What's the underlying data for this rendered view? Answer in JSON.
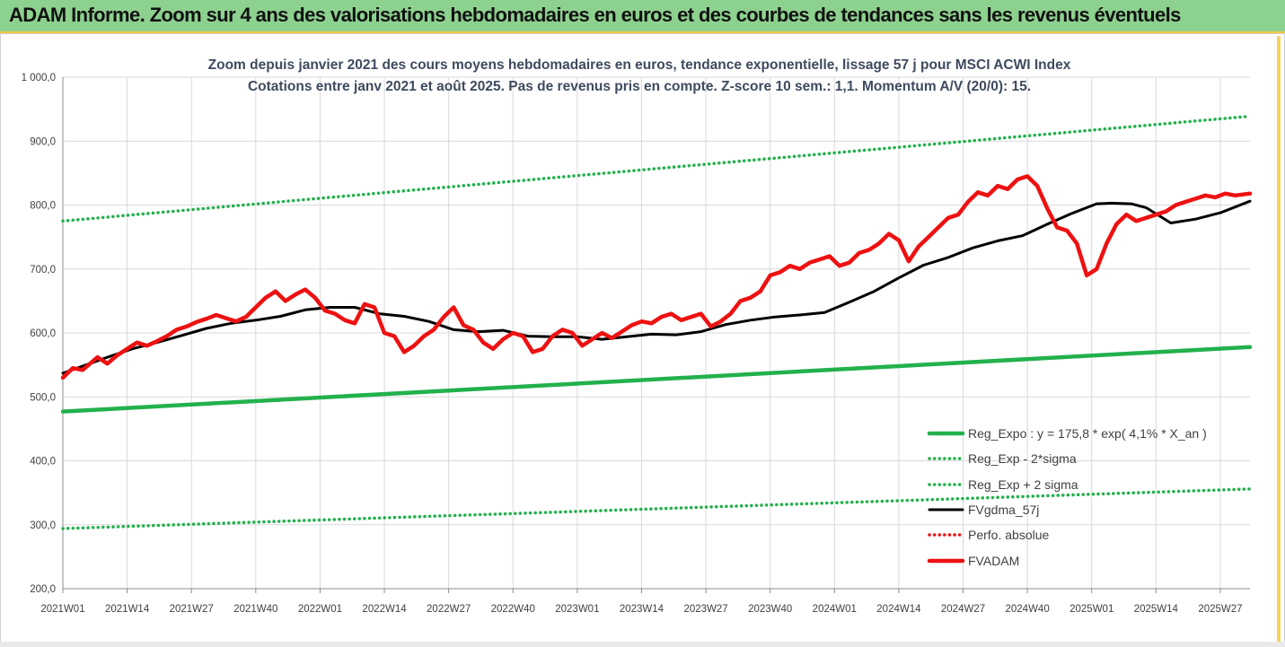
{
  "banner": {
    "title": "ADAM Informe. Zoom sur 4 ans des valorisations hebdomadaires en euros et des courbes de tendances sans les revenus éventuels"
  },
  "colors": {
    "banner_bg": "#8dd18f",
    "green": "#22b14c",
    "black": "#000000",
    "red": "#ee1111"
  },
  "chart_data": {
    "type": "line",
    "title_lines": [
      "Zoom depuis janvier 2021 des cours moyens hebdomadaires en euros, tendance exponentielle, lissage 57 j pour MSCI ACWI Index",
      "Cotations entre janv 2021 et août 2025. Pas de revenus pris en compte. Z-score 10 sem.: 1,1. Momentum A/V (20/0): 15."
    ],
    "xlabel": "",
    "ylabel": "",
    "ylim": [
      200,
      1000
    ],
    "y_ticks": [
      "200,0",
      "300,0",
      "400,0",
      "500,0",
      "600,0",
      "700,0",
      "800,0",
      "900,0",
      "1 000,0"
    ],
    "x_ticks": [
      "2021W01",
      "2021W14",
      "2021W27",
      "2021W40",
      "2022W01",
      "2022W14",
      "2022W27",
      "2022W40",
      "2023W01",
      "2023W14",
      "2023W27",
      "2023W40",
      "2024W01",
      "2024W14",
      "2024W27",
      "2024W40",
      "2025W01",
      "2025W14",
      "2025W27"
    ],
    "grid": true,
    "legend_position": "right",
    "series": [
      {
        "name": "Reg_Expo : y = 175,8 * exp( 4,1% *  X_an )",
        "style": "solid-thick",
        "color": "#22b14c",
        "x": [
          1,
          241
        ],
        "values": [
          477,
          578
        ]
      },
      {
        "name": "Reg_Exp - 2*sigma",
        "style": "dotted",
        "color": "#22b14c",
        "x": [
          1,
          241
        ],
        "values": [
          294,
          356
        ]
      },
      {
        "name": "Reg_Exp + 2 sigma",
        "style": "dotted",
        "color": "#22b14c",
        "x": [
          1,
          241
        ],
        "values": [
          775,
          939
        ]
      },
      {
        "name": "FVgdma_57j",
        "style": "solid",
        "color": "#000000",
        "x": [
          1,
          5,
          10,
          15,
          20,
          25,
          30,
          35,
          40,
          45,
          50,
          55,
          60,
          65,
          70,
          75,
          80,
          85,
          90,
          95,
          100,
          105,
          110,
          115,
          120,
          125,
          130,
          135,
          140,
          145,
          150,
          155,
          160,
          165,
          170,
          175,
          180,
          185,
          190,
          195,
          200,
          205,
          210,
          213,
          217,
          220,
          225,
          230,
          235,
          241
        ],
        "values": [
          537,
          548,
          562,
          575,
          585,
          596,
          607,
          615,
          620,
          626,
          636,
          640,
          640,
          630,
          626,
          618,
          605,
          602,
          604,
          595,
          594,
          594,
          590,
          594,
          598,
          597,
          602,
          613,
          620,
          625,
          628,
          632,
          648,
          665,
          686,
          706,
          718,
          733,
          744,
          752,
          770,
          787,
          802,
          803,
          802,
          796,
          772,
          778,
          788,
          806
        ]
      },
      {
        "name": "Perfo. absolue",
        "style": "dotted",
        "color": "#ee1111",
        "x": [],
        "values": []
      },
      {
        "name": "FVADAM",
        "style": "solid-thick",
        "color": "#ee1111",
        "x": [
          1,
          3,
          5,
          8,
          10,
          12,
          14,
          16,
          18,
          20,
          22,
          24,
          26,
          28,
          30,
          32,
          34,
          36,
          38,
          40,
          42,
          44,
          46,
          48,
          50,
          52,
          54,
          56,
          58,
          60,
          62,
          64,
          66,
          68,
          70,
          72,
          74,
          76,
          78,
          80,
          82,
          84,
          86,
          88,
          90,
          92,
          94,
          96,
          98,
          100,
          102,
          104,
          106,
          108,
          110,
          112,
          114,
          116,
          118,
          120,
          122,
          124,
          126,
          128,
          130,
          132,
          134,
          136,
          138,
          140,
          142,
          144,
          146,
          148,
          150,
          152,
          154,
          156,
          158,
          160,
          162,
          164,
          166,
          168,
          170,
          172,
          174,
          176,
          178,
          180,
          182,
          184,
          186,
          188,
          190,
          192,
          194,
          196,
          198,
          200,
          202,
          204,
          206,
          208,
          210,
          212,
          214,
          216,
          218,
          220,
          222,
          224,
          226,
          228,
          230,
          232,
          234,
          236,
          238,
          241
        ],
        "values": [
          530,
          545,
          542,
          562,
          552,
          565,
          575,
          585,
          580,
          587,
          595,
          605,
          610,
          617,
          622,
          628,
          623,
          618,
          625,
          640,
          655,
          665,
          650,
          660,
          668,
          655,
          635,
          630,
          620,
          615,
          645,
          640,
          600,
          595,
          570,
          580,
          595,
          605,
          625,
          640,
          612,
          605,
          585,
          575,
          590,
          600,
          595,
          570,
          575,
          595,
          605,
          600,
          580,
          590,
          600,
          592,
          602,
          612,
          618,
          615,
          625,
          630,
          620,
          625,
          630,
          610,
          618,
          630,
          650,
          655,
          665,
          690,
          695,
          705,
          700,
          710,
          715,
          720,
          705,
          710,
          725,
          730,
          740,
          755,
          745,
          712,
          735,
          750,
          765,
          780,
          785,
          805,
          820,
          815,
          830,
          825,
          840,
          845,
          830,
          795,
          765,
          760,
          740,
          690,
          700,
          740,
          770,
          785,
          775,
          780,
          785,
          790,
          800,
          805,
          810,
          815,
          812,
          818,
          815,
          818
        ]
      }
    ]
  }
}
